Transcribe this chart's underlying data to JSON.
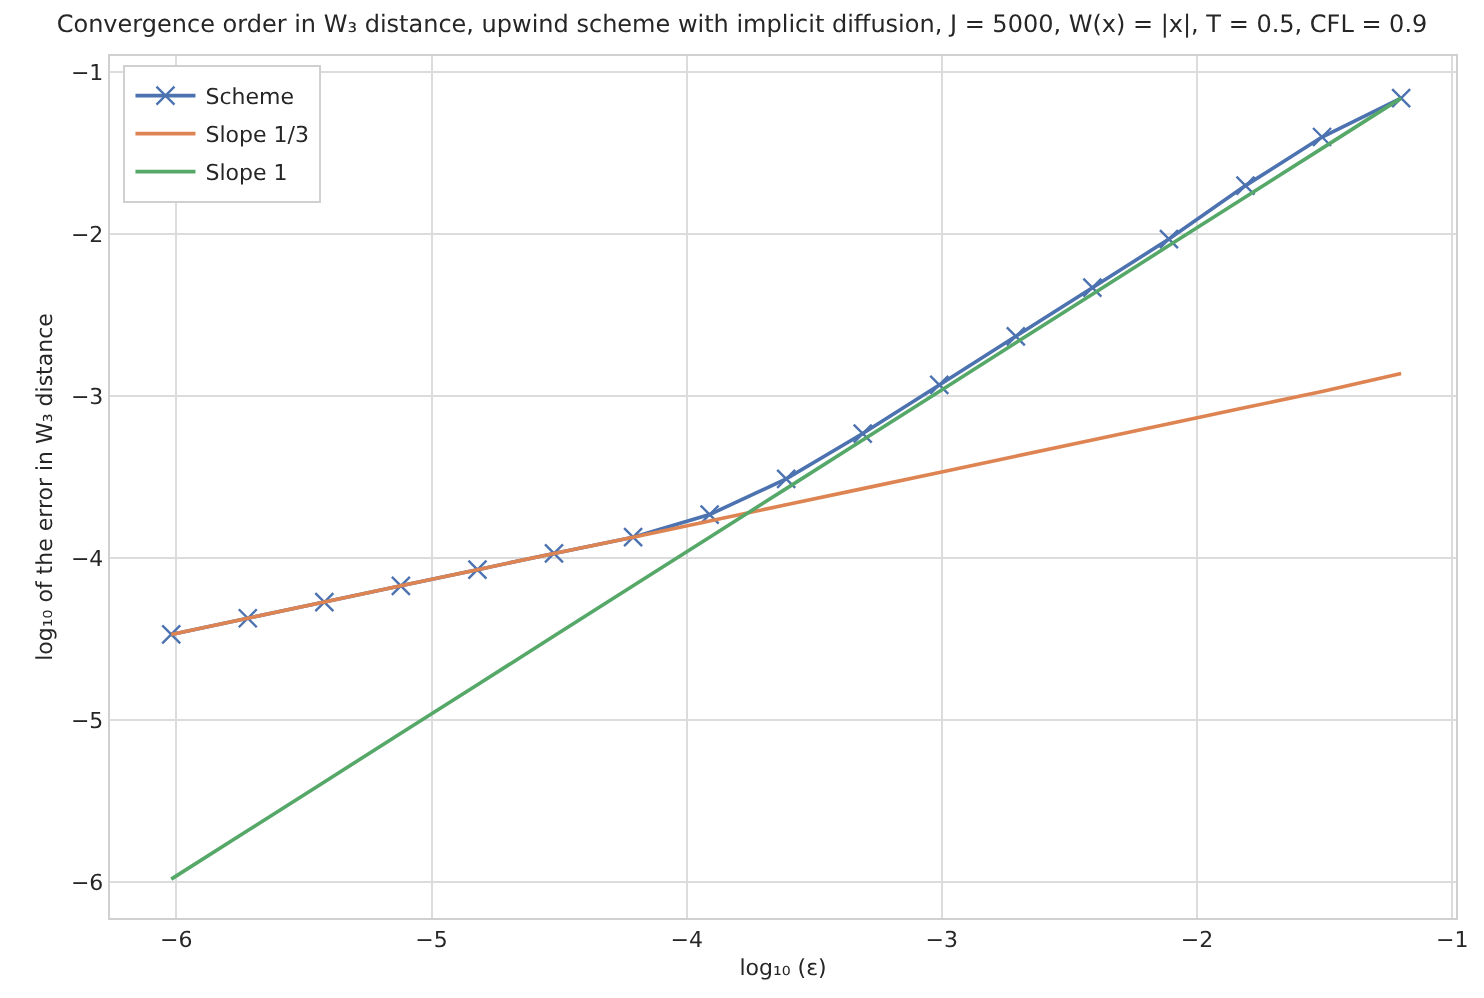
{
  "chart_data": {
    "type": "line",
    "title": "Convergence order in W₃ distance, upwind scheme with implicit diffusion, J = 5000, W(x) = |x|, T = 0.5, CFL = 0.9",
    "xlabel": "log₁₀ (ε)",
    "ylabel": "log₁₀ of the error in W₃ distance",
    "x": [
      -6.02,
      -5.72,
      -5.42,
      -5.12,
      -4.82,
      -4.52,
      -4.21,
      -3.91,
      -3.61,
      -3.31,
      -3.01,
      -2.71,
      -2.41,
      -2.11,
      -1.81,
      -1.51,
      -1.2
    ],
    "series": [
      {
        "name": "Scheme",
        "color": "#4c72b0",
        "marker": "cross",
        "values": [
          -4.47,
          -4.37,
          -4.27,
          -4.17,
          -4.07,
          -3.97,
          -3.87,
          -3.73,
          -3.51,
          -3.23,
          -2.93,
          -2.63,
          -2.33,
          -2.03,
          -1.7,
          -1.4,
          -1.16
        ]
      },
      {
        "name": "Slope 1/3",
        "color": "#dd8452",
        "marker": "none",
        "values": [
          -4.47,
          -4.37,
          -4.27,
          -4.17,
          -4.07,
          -3.97,
          -3.87,
          -3.77,
          -3.67,
          -3.57,
          -3.47,
          -3.37,
          -3.27,
          -3.17,
          -3.07,
          -2.97,
          -2.86
        ]
      },
      {
        "name": "Slope 1",
        "color": "#55a868",
        "marker": "none",
        "values": [
          -5.98,
          -5.68,
          -5.38,
          -5.08,
          -4.78,
          -4.48,
          -4.17,
          -3.87,
          -3.57,
          -3.27,
          -2.97,
          -2.67,
          -2.37,
          -2.07,
          -1.77,
          -1.47,
          -1.16
        ]
      }
    ],
    "xlim": [
      -6.26,
      -0.985
    ],
    "xticks": [
      {
        "value": -6,
        "label": "−6"
      },
      {
        "value": -5,
        "label": "−5"
      },
      {
        "value": -4,
        "label": "−4"
      },
      {
        "value": -3,
        "label": "−3"
      },
      {
        "value": -2,
        "label": "−2"
      },
      {
        "value": -1,
        "label": "−1"
      }
    ],
    "ylim": [
      -6.22,
      -0.9
    ],
    "yticks": [
      {
        "value": -6,
        "label": "−6"
      },
      {
        "value": -5,
        "label": "−5"
      },
      {
        "value": -4,
        "label": "−4"
      },
      {
        "value": -3,
        "label": "−3"
      },
      {
        "value": -2,
        "label": "−2"
      },
      {
        "value": -1,
        "label": "−1"
      }
    ],
    "grid": true,
    "legend": "top left",
    "line_style": "solid"
  }
}
